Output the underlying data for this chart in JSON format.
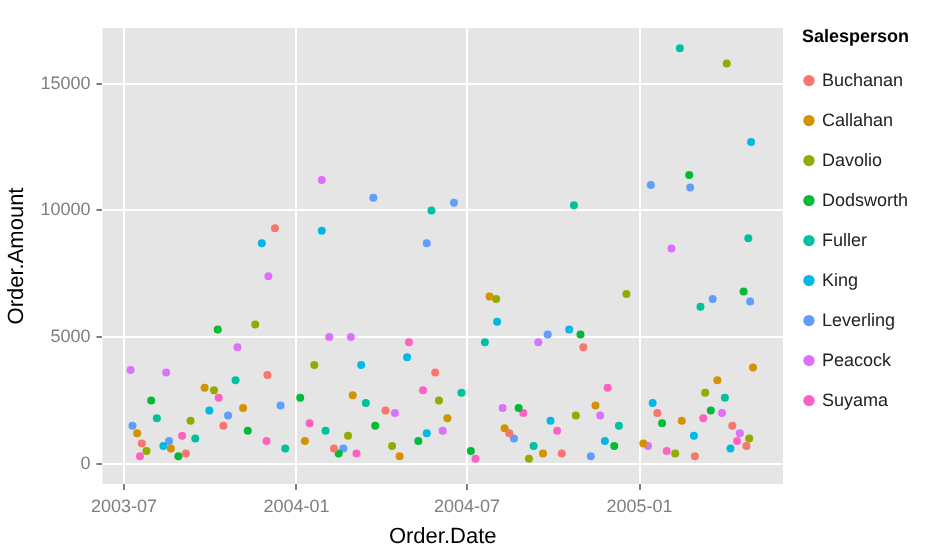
{
  "chart_data": {
    "type": "scatter",
    "xlabel": "Order.Date",
    "ylabel": "Order.Amount",
    "legend_title": "Salesperson",
    "legend": "right",
    "grid": true,
    "marker": "circle",
    "xlim": [
      "2003-06-08",
      "2005-06-03"
    ],
    "xticks": [
      {
        "value": "2003-07-01",
        "label": "2003-07"
      },
      {
        "value": "2004-01-01",
        "label": "2004-01"
      },
      {
        "value": "2004-07-01",
        "label": "2004-07"
      },
      {
        "value": "2005-01-01",
        "label": "2005-01"
      }
    ],
    "ylim": [
      -800,
      17200
    ],
    "yticks": [
      0,
      5000,
      10000,
      15000
    ],
    "series": [
      {
        "name": "Buchanan",
        "color": "#f8766d",
        "x": [
          "2003-07-20",
          "2003-09-05",
          "2003-10-15",
          "2003-12-01",
          "2003-12-09",
          "2004-02-10",
          "2004-04-05",
          "2004-05-28",
          "2004-08-15",
          "2004-10-10",
          "2004-11-02",
          "2005-01-20",
          "2005-03-01",
          "2005-04-10",
          "2005-04-25"
        ],
        "values": [
          800,
          400,
          1500,
          3500,
          9300,
          600,
          2100,
          3600,
          1200,
          400,
          4600,
          2000,
          300,
          1500,
          700
        ]
      },
      {
        "name": "Callahan",
        "color": "#d39200",
        "x": [
          "2003-07-15",
          "2003-08-20",
          "2003-09-25",
          "2003-11-05",
          "2004-01-10",
          "2004-03-01",
          "2004-04-20",
          "2004-06-10",
          "2004-07-25",
          "2004-08-10",
          "2004-09-20",
          "2004-11-15",
          "2005-01-05",
          "2005-02-15",
          "2005-03-25",
          "2005-05-02"
        ],
        "values": [
          1200,
          600,
          3000,
          2200,
          900,
          2700,
          300,
          1800,
          6600,
          1400,
          400,
          2300,
          800,
          1700,
          3300,
          3800
        ]
      },
      {
        "name": "Davolio",
        "color": "#93aa00",
        "x": [
          "2003-07-25",
          "2003-09-10",
          "2003-10-05",
          "2003-11-18",
          "2004-01-20",
          "2004-02-25",
          "2004-04-12",
          "2004-06-01",
          "2004-08-01",
          "2004-09-05",
          "2004-10-25",
          "2004-12-18",
          "2005-02-08",
          "2005-03-12",
          "2005-04-04",
          "2005-04-28"
        ],
        "values": [
          500,
          1700,
          2900,
          5500,
          3900,
          1100,
          700,
          2500,
          6500,
          200,
          1900,
          6700,
          400,
          2800,
          15800,
          1000
        ]
      },
      {
        "name": "Dodsworth",
        "color": "#00ba38",
        "x": [
          "2003-07-30",
          "2003-08-28",
          "2003-10-09",
          "2003-11-10",
          "2004-01-05",
          "2004-02-15",
          "2004-03-25",
          "2004-05-10",
          "2004-07-05",
          "2004-08-25",
          "2004-10-30",
          "2004-12-05",
          "2005-01-25",
          "2005-02-23",
          "2005-03-18",
          "2005-04-22"
        ],
        "values": [
          2500,
          300,
          5300,
          1300,
          2600,
          400,
          1500,
          900,
          500,
          2200,
          5100,
          700,
          1600,
          11400,
          2100,
          6800
        ]
      },
      {
        "name": "Fuller",
        "color": "#00c19f",
        "x": [
          "2003-08-05",
          "2003-09-15",
          "2003-10-28",
          "2003-12-20",
          "2004-02-01",
          "2004-03-15",
          "2004-05-24",
          "2004-06-25",
          "2004-07-20",
          "2004-09-10",
          "2004-10-23",
          "2004-12-10",
          "2005-02-13",
          "2005-03-07",
          "2005-04-02",
          "2005-04-27"
        ],
        "values": [
          1800,
          1000,
          3300,
          600,
          1300,
          2400,
          10000,
          2800,
          4800,
          700,
          10200,
          1500,
          16400,
          6200,
          2600,
          8900
        ]
      },
      {
        "name": "King",
        "color": "#00b9e3",
        "x": [
          "2003-08-12",
          "2003-09-30",
          "2003-11-25",
          "2004-01-28",
          "2004-03-10",
          "2004-04-28",
          "2004-05-19",
          "2004-08-02",
          "2004-09-28",
          "2004-10-18",
          "2004-11-25",
          "2005-01-15",
          "2005-02-28",
          "2005-04-08",
          "2005-04-30"
        ],
        "values": [
          700,
          2100,
          8700,
          9200,
          3900,
          4200,
          1200,
          5600,
          1700,
          5300,
          900,
          2400,
          1100,
          600,
          12700
        ]
      },
      {
        "name": "Leverling",
        "color": "#619cff",
        "x": [
          "2003-07-10",
          "2003-08-18",
          "2003-10-20",
          "2003-12-15",
          "2004-02-20",
          "2004-03-23",
          "2004-05-19",
          "2004-06-17",
          "2004-08-20",
          "2004-09-25",
          "2004-11-10",
          "2005-01-13",
          "2005-02-24",
          "2005-03-20",
          "2005-04-29"
        ],
        "values": [
          1500,
          900,
          1900,
          2300,
          600,
          10500,
          8700,
          10300,
          1000,
          5100,
          300,
          11000,
          10900,
          6500,
          6400
        ]
      },
      {
        "name": "Peacock",
        "color": "#db72fb",
        "x": [
          "2003-07-08",
          "2003-08-15",
          "2003-10-30",
          "2003-12-02",
          "2004-01-28",
          "2004-02-05",
          "2004-02-28",
          "2004-04-15",
          "2004-06-05",
          "2004-08-08",
          "2004-09-15",
          "2004-11-20",
          "2005-01-10",
          "2005-02-04",
          "2005-03-30",
          "2005-04-18"
        ],
        "values": [
          3700,
          3600,
          4600,
          7400,
          11200,
          5000,
          5000,
          2000,
          1300,
          2200,
          4800,
          1900,
          700,
          8500,
          2000,
          1200
        ]
      },
      {
        "name": "Suyama",
        "color": "#ff61c3",
        "x": [
          "2003-07-18",
          "2003-09-01",
          "2003-10-10",
          "2003-11-30",
          "2004-01-15",
          "2004-03-05",
          "2004-04-30",
          "2004-05-15",
          "2004-07-10",
          "2004-08-30",
          "2004-10-05",
          "2004-11-28",
          "2005-01-30",
          "2005-03-10",
          "2005-04-15"
        ],
        "values": [
          300,
          1100,
          2600,
          900,
          1600,
          400,
          4800,
          2900,
          200,
          2000,
          1300,
          3000,
          500,
          1800,
          900
        ]
      }
    ]
  }
}
